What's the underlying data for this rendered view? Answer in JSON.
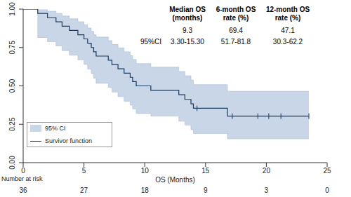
{
  "chart_data": {
    "type": "line",
    "line_style": "step",
    "xlabel": "OS (Months)",
    "xlim": [
      0,
      25
    ],
    "xticks": [
      0,
      5,
      10,
      15,
      20,
      25
    ],
    "ylim": [
      0,
      1
    ],
    "yticks": [
      {
        "value": 0,
        "label": "0.00"
      },
      {
        "value": 0.25,
        "label": "0.25"
      },
      {
        "value": 0.5,
        "label": "0.50"
      },
      {
        "value": 0.75,
        "label": "0.75"
      },
      {
        "value": 1,
        "label": "1.00"
      }
    ],
    "grid": false,
    "legend": "lower left",
    "x": [
      0,
      1.2,
      2.0,
      2.7,
      3.2,
      3.8,
      4.5,
      5.0,
      5.3,
      5.6,
      5.8,
      6.0,
      7.0,
      7.3,
      7.8,
      8.3,
      8.8,
      9.0,
      9.3,
      10.5,
      12.8,
      13.3,
      13.8,
      14.0,
      16.8,
      23.5
    ],
    "series": [
      {
        "name": "Survivor function",
        "color": "#1b3a5c",
        "values": [
          1,
          0.972,
          0.944,
          0.917,
          0.889,
          0.861,
          0.833,
          0.806,
          0.778,
          0.75,
          0.722,
          0.694,
          0.667,
          0.639,
          0.611,
          0.583,
          0.556,
          0.528,
          0.5,
          0.471,
          0.442,
          0.412,
          0.383,
          0.354,
          0.303,
          0.303
        ]
      }
    ],
    "ci": {
      "name": "95% CI",
      "color": "#c9d6e8",
      "lower": [
        1,
        0.815,
        0.788,
        0.76,
        0.73,
        0.7,
        0.67,
        0.64,
        0.61,
        0.58,
        0.55,
        0.517,
        0.49,
        0.46,
        0.43,
        0.4,
        0.375,
        0.35,
        0.32,
        0.303,
        0.27,
        0.245,
        0.215,
        0.19,
        0.155,
        0.155
      ],
      "upper": [
        1,
        0.996,
        0.986,
        0.972,
        0.955,
        0.937,
        0.918,
        0.898,
        0.877,
        0.855,
        0.833,
        0.818,
        0.795,
        0.77,
        0.748,
        0.722,
        0.697,
        0.672,
        0.645,
        0.622,
        0.594,
        0.566,
        0.538,
        0.508,
        0.465,
        0.465
      ]
    },
    "censored": {
      "x": [
        14.3,
        17.2,
        19.3,
        20.2,
        21.2,
        23.5
      ],
      "values": [
        0.354,
        0.303,
        0.303,
        0.303,
        0.303,
        0.303
      ]
    },
    "risk_table": {
      "title": "Number at risk",
      "x": [
        0,
        5,
        10,
        15,
        20,
        25
      ],
      "values": [
        36,
        27,
        18,
        9,
        3,
        0
      ]
    },
    "summary_table": {
      "header": [
        [
          "Median OS",
          "(months)"
        ],
        [
          "6-month OS",
          "rate (%)"
        ],
        [
          "12-month OS",
          "rate (%)"
        ]
      ],
      "estimates": [
        9.3,
        69.4,
        47.1
      ],
      "ci_label": "95%CI",
      "ci": [
        "3.30-15.30",
        "51.7-81.8",
        "30.3-62.2"
      ]
    }
  }
}
